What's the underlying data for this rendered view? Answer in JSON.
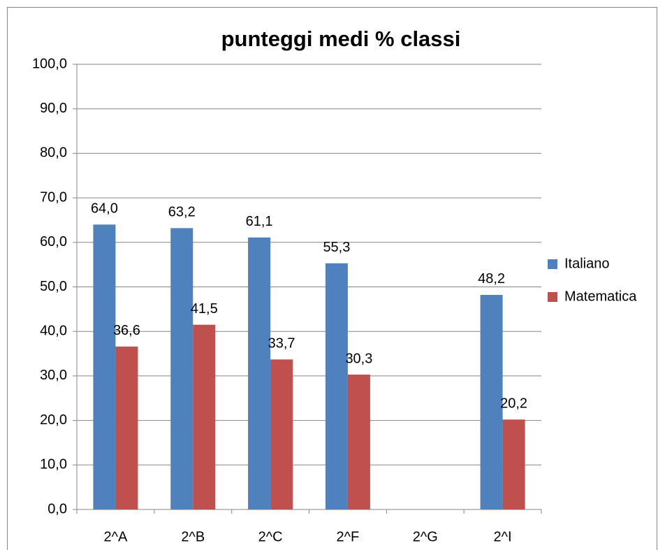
{
  "chart_data": {
    "type": "bar",
    "title": "punteggi medi  % classi",
    "categories": [
      "2^A",
      "2^B",
      "2^C",
      "2^F",
      "2^G",
      "2^I"
    ],
    "series": [
      {
        "name": "Italiano",
        "color": "#4f81bd",
        "values": [
          64.0,
          63.2,
          61.1,
          55.3,
          null,
          48.2
        ],
        "value_labels": [
          "64,0",
          "63,2",
          "61,1",
          "55,3",
          null,
          "48,2"
        ]
      },
      {
        "name": "Matematica",
        "color": "#c0504d",
        "values": [
          36.6,
          41.5,
          33.7,
          30.3,
          null,
          20.2
        ],
        "value_labels": [
          "36,6",
          "41,5",
          "33,7",
          "30,3",
          null,
          "20,2"
        ]
      }
    ],
    "ylim": [
      0,
      100
    ],
    "yticks": [
      {
        "value": 0,
        "label": "0,0"
      },
      {
        "value": 10,
        "label": "10,0"
      },
      {
        "value": 20,
        "label": "20,0"
      },
      {
        "value": 30,
        "label": "30,0"
      },
      {
        "value": 40,
        "label": "40,0"
      },
      {
        "value": 50,
        "label": "50,0"
      },
      {
        "value": 60,
        "label": "60,0"
      },
      {
        "value": 70,
        "label": "70,0"
      },
      {
        "value": 80,
        "label": "80,0"
      },
      {
        "value": 90,
        "label": "90,0"
      },
      {
        "value": 100,
        "label": "100,0"
      }
    ],
    "grid": true,
    "legend": "right"
  }
}
